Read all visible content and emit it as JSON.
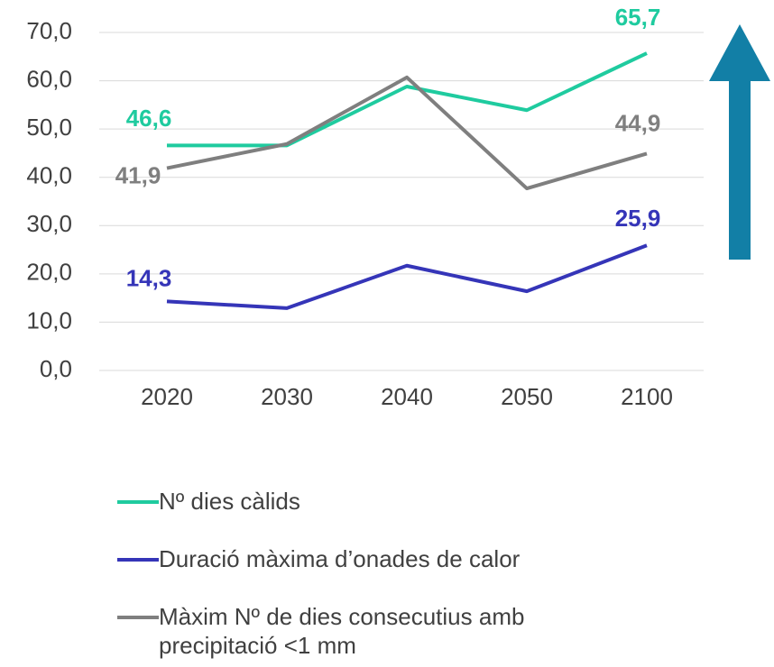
{
  "chart_data": {
    "type": "line",
    "categories": [
      "2020",
      "2030",
      "2040",
      "2050",
      "2100"
    ],
    "series": [
      {
        "name": "Nº dies càlids",
        "color": "#1fcb9f",
        "values": [
          46.6,
          46.6,
          58.8,
          53.9,
          65.7
        ],
        "value_labels": [
          "46,6",
          null,
          null,
          null,
          "65,7"
        ]
      },
      {
        "name": "Duració màxima d’onades de calor",
        "color": "#3535b8",
        "values": [
          14.3,
          12.9,
          21.7,
          16.4,
          25.9
        ],
        "value_labels": [
          "14,3",
          null,
          null,
          null,
          "25,9"
        ]
      },
      {
        "name": "Màxim Nº de dies consecutius amb precipitació <1 mm",
        "color": "#7f7f7f",
        "values": [
          41.9,
          46.9,
          60.7,
          37.7,
          44.9
        ],
        "value_labels": [
          "41,9",
          null,
          null,
          null,
          "44,9"
        ]
      }
    ],
    "ylim": [
      0,
      70
    ],
    "yticks": [
      {
        "value": 0,
        "label": "0,0"
      },
      {
        "value": 10,
        "label": "10,0"
      },
      {
        "value": 20,
        "label": "20,0"
      },
      {
        "value": 30,
        "label": "30,0"
      },
      {
        "value": 40,
        "label": "40,0"
      },
      {
        "value": 50,
        "label": "50,0"
      },
      {
        "value": 60,
        "label": "60,0"
      },
      {
        "value": 70,
        "label": "70,0"
      }
    ],
    "grid": true,
    "legend": "bottom"
  }
}
